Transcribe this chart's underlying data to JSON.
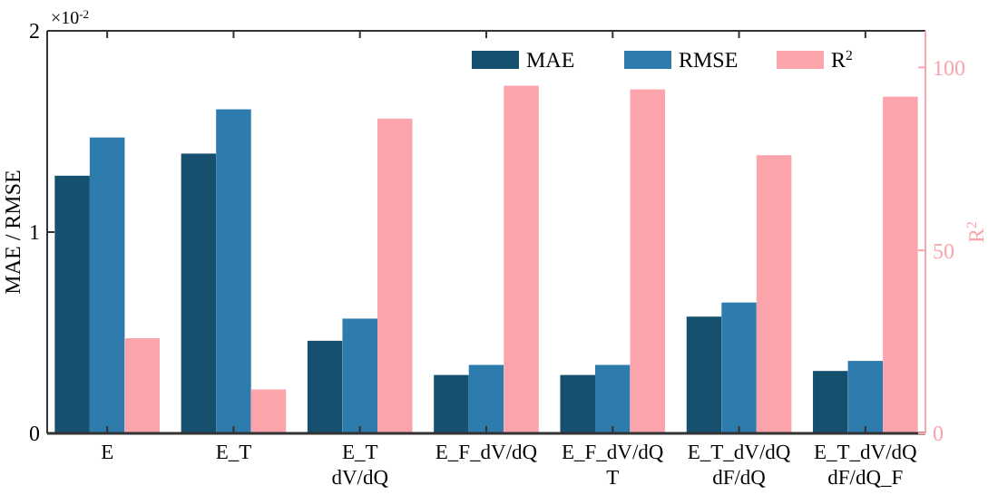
{
  "chart_data": {
    "type": "bar",
    "ylabel": "MAE / RMSE",
    "y2label": "R$^{2}$",
    "annotations": [
      "×10$^{-2}$"
    ],
    "categories": [
      "E",
      "E_T",
      "E_T\ndV/dQ",
      "E_F_dV/dQ",
      "E_F_dV/dQ\nT",
      "E_T_dV/dQ\ndF/dQ",
      "E_T_dV/dQ\ndF/dQ_F"
    ],
    "series": [
      {
        "name": "MAE",
        "color": "#15506f",
        "values": [
          1.28,
          1.39,
          0.46,
          0.29,
          0.29,
          0.58,
          0.31
        ]
      },
      {
        "name": "RMSE",
        "color": "#2e7bad",
        "values": [
          1.47,
          1.61,
          0.57,
          0.34,
          0.34,
          0.65,
          0.36
        ]
      },
      {
        "name": "R$^{2}$",
        "color": "#fba4ab",
        "axis": "y2",
        "values": [
          26,
          12,
          86,
          95,
          94,
          76,
          92
        ]
      }
    ],
    "ylim": [
      0,
      2
    ],
    "yticks": [
      0,
      1,
      2
    ],
    "y2lim": [
      0,
      110
    ],
    "y2ticks": [
      0,
      50,
      100
    ],
    "legend": "top right",
    "grid": false
  }
}
